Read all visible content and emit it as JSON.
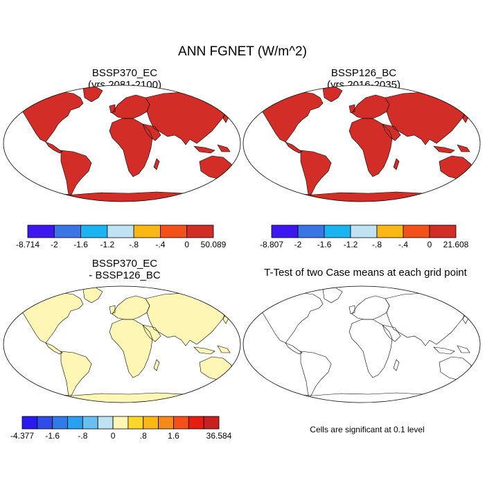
{
  "figure": {
    "title": "ANN FGNET (W/m^2)"
  },
  "panels": [
    {
      "id": "p1",
      "title_lines": [
        "BSSP370_EC",
        "(yrs 2081-2100)"
      ],
      "scheme": "warm"
    },
    {
      "id": "p2",
      "title_lines": [
        "BSSP126_BC",
        "(yrs 2016-2035)"
      ],
      "scheme": "warm2"
    },
    {
      "id": "p3",
      "title_lines": [
        "BSSP370_EC",
        "- BSSP126_BC"
      ],
      "scheme": "diff"
    },
    {
      "id": "p4",
      "title_lines": [
        "T-Test of two Case means at each grid point"
      ],
      "scheme": "ttest"
    }
  ],
  "colorbars": [
    {
      "id": "cb1",
      "colors": [
        "#3d16f0",
        "#3b74e6",
        "#1ab4f0",
        "#bfe3f2",
        "#fbb814",
        "#f4501a",
        "#d22d26"
      ],
      "labels": [
        "-8.714",
        "-2",
        "-1.6",
        "-1.2",
        "-.8",
        "-.4",
        "0",
        "50.089"
      ]
    },
    {
      "id": "cb2",
      "colors": [
        "#3d16f0",
        "#3b74e6",
        "#1ab4f0",
        "#bfe3f2",
        "#fbb814",
        "#f4501a",
        "#d22d26"
      ],
      "labels": [
        "-8.807",
        "-2",
        "-1.6",
        "-1.2",
        "-.8",
        "-.4",
        "0",
        "21.608"
      ]
    },
    {
      "id": "cb3",
      "colors": [
        "#2a1af0",
        "#2f4ce6",
        "#2f7ce8",
        "#2aa0f0",
        "#68c0f0",
        "#bfe3f2",
        "#fdf6b4",
        "#fcd72a",
        "#fbb814",
        "#f48a1a",
        "#f4501a",
        "#e61e12",
        "#c8211f"
      ],
      "labels": [
        "-4.377",
        "",
        "-1.6",
        "",
        "-.8",
        "",
        "0",
        "",
        ".8",
        "",
        "1.6",
        "",
        "",
        "36.584"
      ],
      "label_positions": [
        0,
        2,
        4,
        6,
        8,
        10,
        13
      ]
    }
  ],
  "significance_note": "Cells are significant at 0.1 level"
}
